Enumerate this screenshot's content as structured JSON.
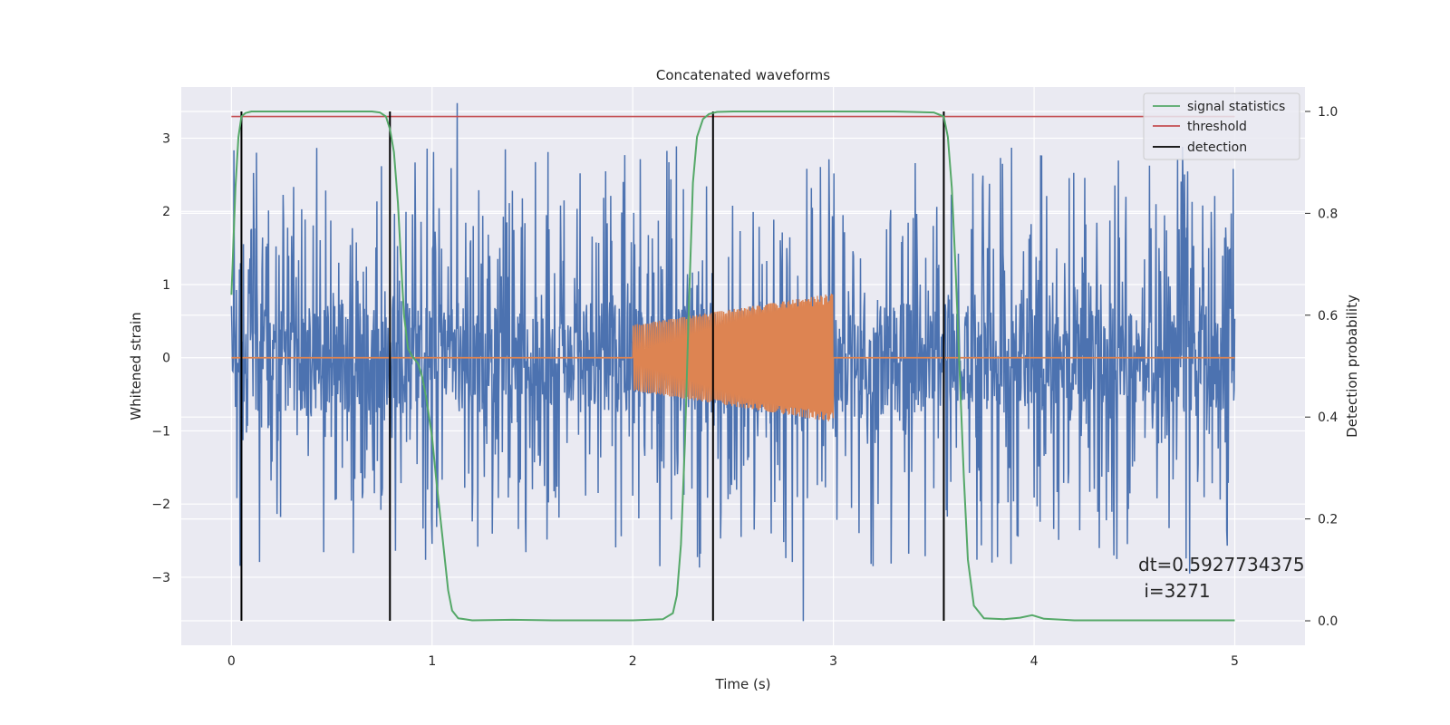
{
  "chart_data": {
    "type": "line",
    "title": "Concatenated waveforms",
    "xlabel": "Time (s)",
    "ylabel": "Whitened strain",
    "ylabel_right": "Detection probability",
    "xlim": [
      -0.25,
      5.35
    ],
    "ylim": [
      -3.93,
      3.7
    ],
    "ylim_right": [
      -0.048,
      1.048
    ],
    "x_ticks": [
      0,
      1,
      2,
      3,
      4,
      5
    ],
    "y_ticks": [
      -3,
      -2,
      -1,
      0,
      1,
      2,
      3
    ],
    "y_ticks_right": [
      0.0,
      0.2,
      0.4,
      0.6,
      0.8,
      1.0
    ],
    "grid": true,
    "legend_position": "top-right",
    "colors": {
      "strain": "#4c72b0",
      "injection": "#dd8452",
      "signal_statistics": "#55a868",
      "threshold": "#c44e52",
      "detection": "#000000",
      "background": "#eaeaf2",
      "grid": "#ffffff"
    },
    "series": [
      {
        "name": "signal statistics",
        "axis": "right",
        "x": [
          0.0,
          0.02,
          0.035,
          0.05,
          0.07,
          0.1,
          0.2,
          0.4,
          0.6,
          0.7,
          0.74,
          0.77,
          0.79,
          0.81,
          0.83,
          0.85,
          0.86,
          0.88,
          0.9,
          0.93,
          0.95,
          0.97,
          1.0,
          1.02,
          1.05,
          1.08,
          1.1,
          1.13,
          1.2,
          1.4,
          1.6,
          1.8,
          2.0,
          2.15,
          2.2,
          2.22,
          2.24,
          2.26,
          2.28,
          2.3,
          2.32,
          2.35,
          2.38,
          2.42,
          2.5,
          2.7,
          3.0,
          3.3,
          3.5,
          3.55,
          3.57,
          3.59,
          3.61,
          3.63,
          3.65,
          3.67,
          3.7,
          3.75,
          3.85,
          3.93,
          3.99,
          4.05,
          4.2,
          4.6,
          5.0
        ],
        "values": [
          0.64,
          0.85,
          0.95,
          0.99,
          0.997,
          1.0,
          1.0,
          1.0,
          1.0,
          1.0,
          0.998,
          0.99,
          0.965,
          0.92,
          0.82,
          0.67,
          0.6,
          0.535,
          0.52,
          0.505,
          0.48,
          0.44,
          0.36,
          0.28,
          0.17,
          0.06,
          0.02,
          0.005,
          0.001,
          0.002,
          0.001,
          0.001,
          0.001,
          0.003,
          0.015,
          0.05,
          0.15,
          0.35,
          0.62,
          0.86,
          0.95,
          0.985,
          0.995,
          0.999,
          1.0,
          1.0,
          1.0,
          1.0,
          0.998,
          0.99,
          0.95,
          0.85,
          0.68,
          0.48,
          0.28,
          0.12,
          0.03,
          0.005,
          0.003,
          0.006,
          0.011,
          0.004,
          0.001,
          0.001,
          0.001
        ]
      },
      {
        "name": "threshold",
        "axis": "right",
        "x": [
          0.0,
          5.0
        ],
        "values": [
          0.99,
          0.99
        ]
      },
      {
        "name": "detection",
        "axis": "right",
        "x_positions": [
          0.05,
          0.79,
          2.4,
          3.55
        ],
        "range": [
          0.0,
          1.0
        ]
      }
    ],
    "strain": {
      "axis": "left",
      "x_range": [
        0.0,
        5.0
      ],
      "amplitude_core": 0.75,
      "peak_max": 3.48,
      "peak_min": -3.6
    },
    "injection": {
      "axis": "left",
      "x_range": [
        2.0,
        3.0
      ],
      "amplitude_start": 0.45,
      "amplitude_end": 0.88
    },
    "annotation": {
      "dt": "dt=0.5927734375",
      "i": " i=3271"
    }
  }
}
